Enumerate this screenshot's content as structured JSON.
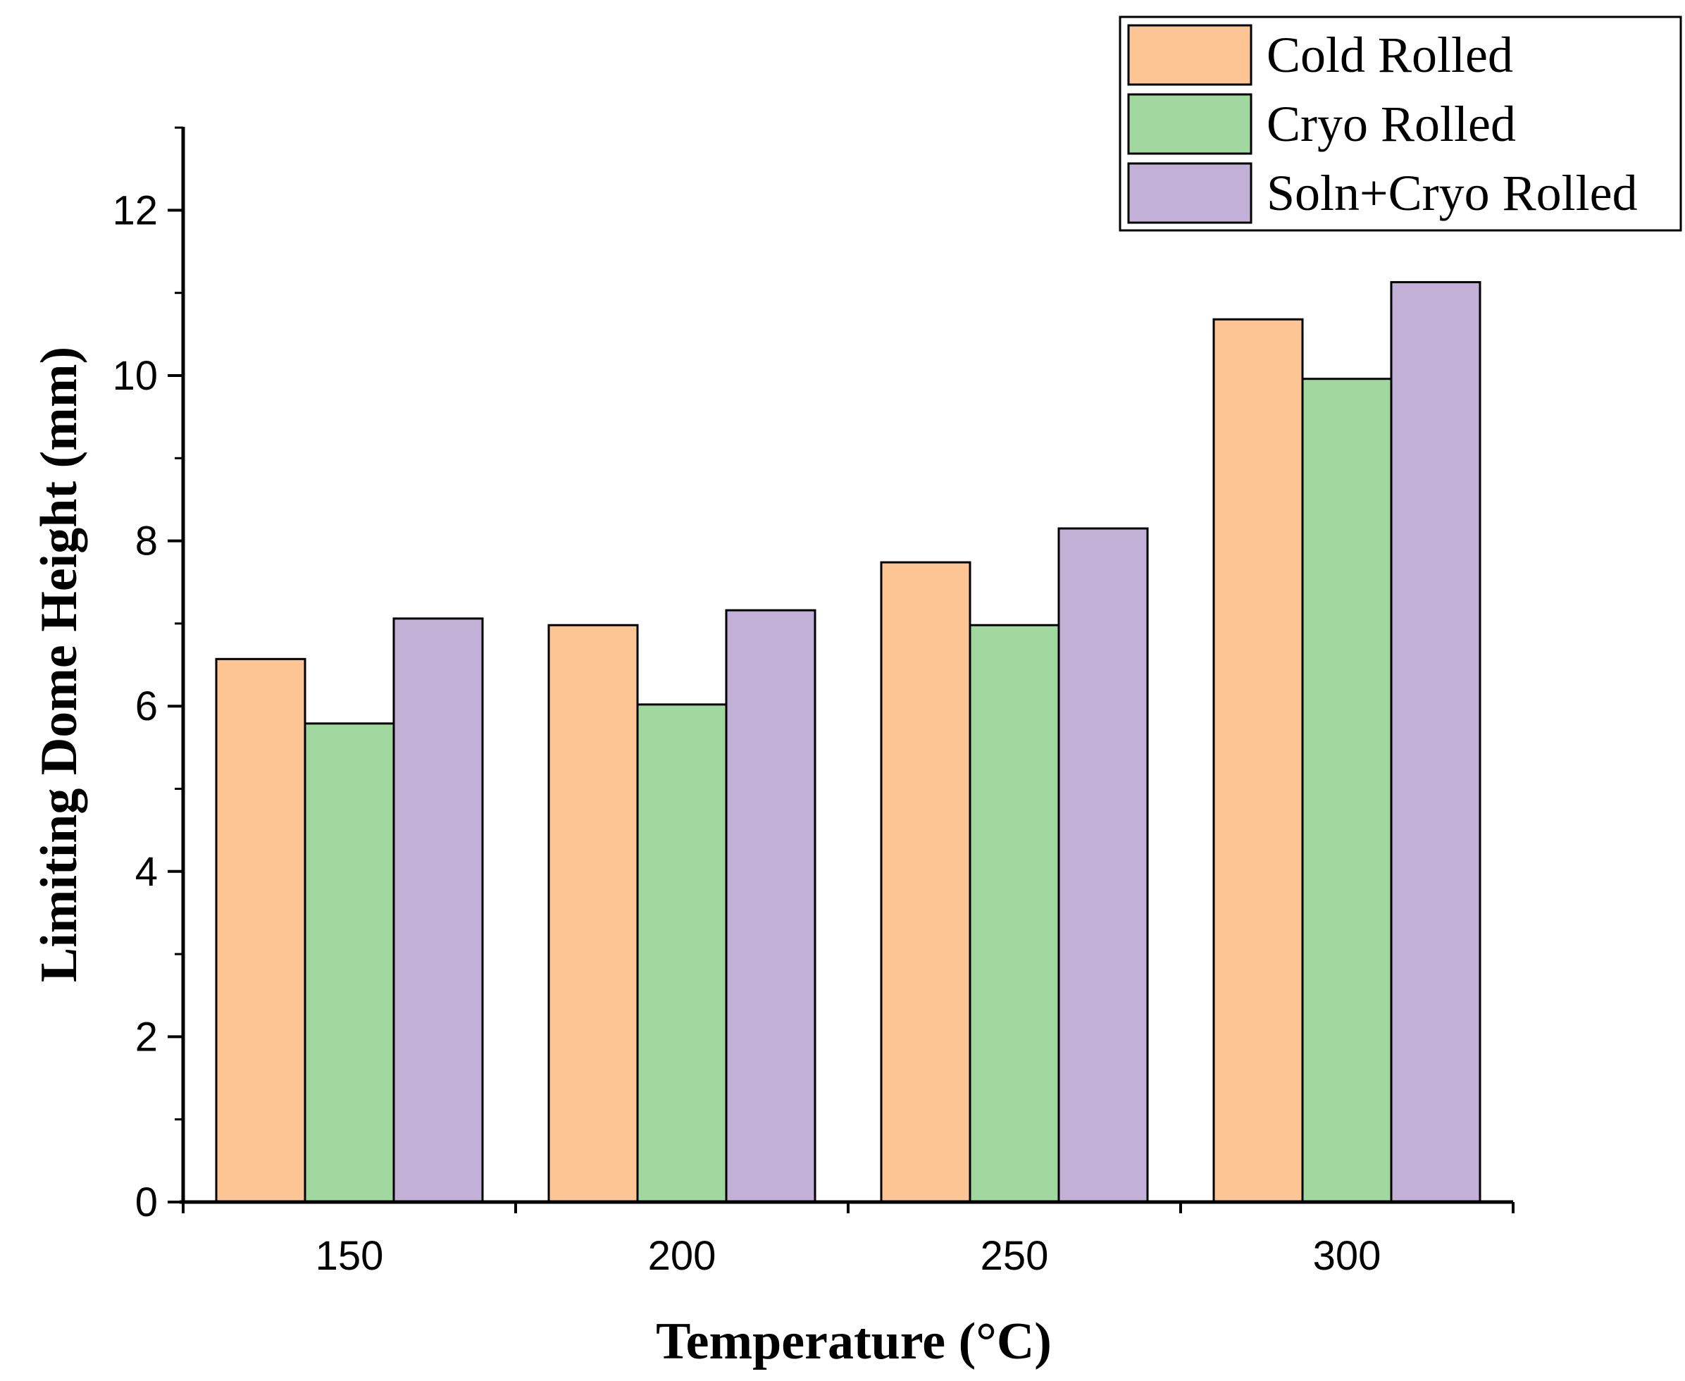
{
  "chart_data": {
    "type": "bar",
    "title": "",
    "xlabel": "Temperature (°C)",
    "ylabel": "Limiting Dome Height (mm)",
    "categories": [
      "150",
      "200",
      "250",
      "300"
    ],
    "ylim": [
      0,
      13
    ],
    "yticks": [
      "0",
      "2",
      "4",
      "6",
      "8",
      "10",
      "12"
    ],
    "grid": false,
    "legend_position": "top-right",
    "series": [
      {
        "name": "Cold Rolled",
        "color": "#FDC593",
        "values": [
          6.57,
          6.98,
          7.74,
          10.68
        ]
      },
      {
        "name": "Cryo Rolled",
        "color": "#A0D89F",
        "values": [
          5.79,
          6.02,
          6.98,
          9.96
        ]
      },
      {
        "name": "Soln+Cryo Rolled",
        "color": "#C3B0D6",
        "values": [
          7.06,
          7.16,
          8.15,
          11.13
        ]
      }
    ]
  }
}
